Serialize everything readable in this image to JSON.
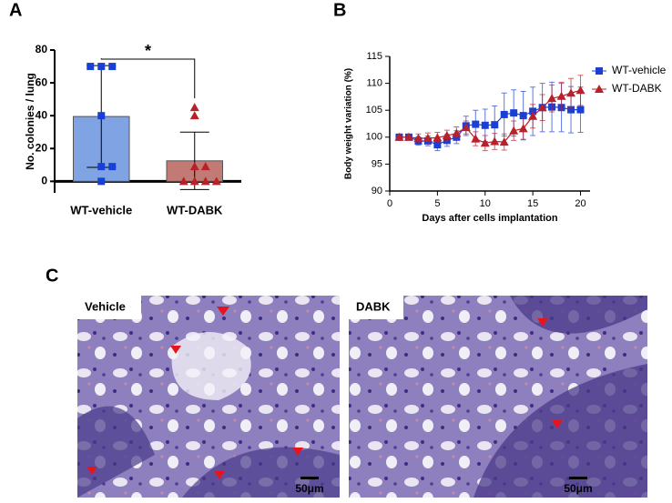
{
  "panels": [
    "A",
    "B",
    "C"
  ],
  "chart_data": [
    {
      "type": "bar",
      "y_label": "No. colonies / lung",
      "categories": [
        "WT-vehicle",
        "WT-DABK"
      ],
      "values": [
        39.5,
        12.5
      ],
      "errors": [
        31,
        17.5
      ],
      "colors": [
        "#7fa3e3",
        "#c27b74"
      ],
      "point_colors": [
        "#1a3fd6",
        "#b8202a"
      ],
      "points": [
        [
          70,
          70,
          70,
          40,
          9,
          9,
          0
        ],
        [
          45,
          40,
          9,
          9,
          0,
          0,
          0,
          0
        ]
      ],
      "annotation": "*",
      "ylim": [
        -7,
        80
      ],
      "yticks": [
        0,
        20,
        40,
        60,
        80
      ]
    },
    {
      "type": "line",
      "x_label": "Days after cells implantation",
      "y_label": "Body weight variation (%)",
      "x": [
        1,
        2,
        3,
        4,
        5,
        6,
        7,
        8,
        9,
        10,
        11,
        12,
        13,
        14,
        15,
        16,
        17,
        18,
        19,
        20
      ],
      "series": [
        {
          "name": "WT-vehicle",
          "color": "#1a3fd6",
          "marker": "square",
          "values": [
            100,
            100,
            99.3,
            99.3,
            98.6,
            99.4,
            100,
            102.1,
            102.4,
            102.2,
            102.3,
            104.2,
            104.5,
            104,
            104.8,
            105.5,
            105.6,
            105.5,
            105.1,
            105.1
          ],
          "errors": [
            0.3,
            0.4,
            0.8,
            0.9,
            1.1,
            1.1,
            1.2,
            1.8,
            2.6,
            3,
            3.5,
            4,
            4.3,
            4.5,
            4.5,
            4.5,
            4.6,
            4.5,
            4.3,
            4.2
          ]
        },
        {
          "name": "WT-DABK",
          "color": "#b8202a",
          "marker": "triangle",
          "values": [
            100,
            100,
            99.8,
            99.8,
            99.9,
            100.3,
            100.7,
            101.8,
            99.7,
            98.9,
            99.2,
            99.1,
            101.2,
            101.6,
            103.9,
            105.5,
            107.2,
            107.6,
            108.2,
            108.7
          ],
          "errors": [
            0.3,
            0.5,
            0.8,
            1,
            1,
            1,
            1.2,
            1.2,
            1.3,
            1.4,
            1.5,
            1.5,
            1.8,
            2,
            2.2,
            2.4,
            2.5,
            2.6,
            2.7,
            2.8
          ]
        }
      ],
      "xlim": [
        0,
        21
      ],
      "xticks": [
        0,
        5,
        10,
        15,
        20
      ],
      "ylim": [
        90,
        115
      ],
      "yticks": [
        90,
        95,
        100,
        105,
        110,
        115
      ],
      "legend": "right"
    }
  ],
  "images": [
    {
      "label": "Vehicle",
      "scale": "50μm"
    },
    {
      "label": "DABK",
      "scale": "50μm"
    }
  ]
}
